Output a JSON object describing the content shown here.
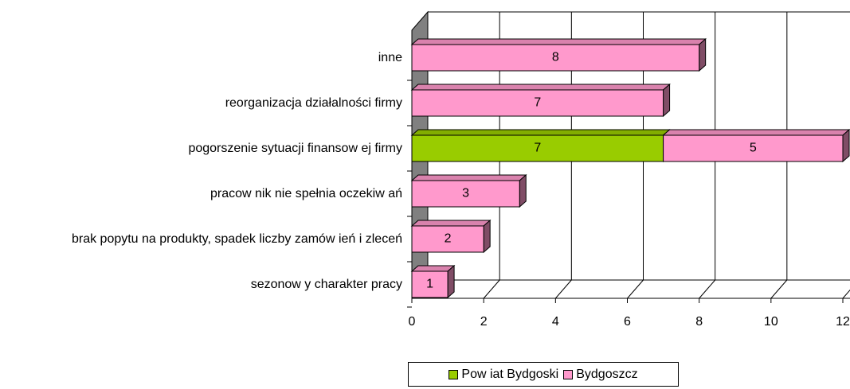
{
  "chart_data": {
    "type": "bar3d_stacked_horizontal",
    "categories": [
      "inne",
      "reorganizacja działalności firmy",
      "pogorszenie sytuacji finansow ej firmy",
      "pracow nik nie spełnia oczekiw ań",
      "brak popytu na produkty, spadek liczby zamów ień i zleceń",
      "sezonow y charakter pracy"
    ],
    "series": [
      {
        "name": "Pow iat Bydgoski",
        "color": "#99cc00",
        "values": [
          null,
          null,
          7,
          null,
          null,
          null
        ]
      },
      {
        "name": "Bydgoszcz",
        "color": "#ff99cc",
        "values": [
          8,
          7,
          5,
          3,
          2,
          1
        ]
      }
    ],
    "xlim": [
      0,
      12
    ],
    "xticks": [
      0,
      2,
      4,
      6,
      8,
      10,
      12
    ],
    "grid": true,
    "legend": "bottom"
  }
}
